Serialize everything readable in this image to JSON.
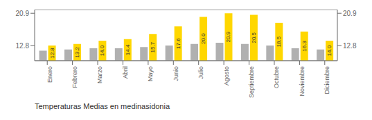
{
  "chart_data": {
    "type": "bar",
    "title": "Temperaturas Medias en medinasidonia",
    "categories": [
      "Enero",
      "Febrero",
      "Marzo",
      "Abril",
      "Mayo",
      "Junio",
      "Julio",
      "Agosto",
      "Septiembre",
      "Octubre",
      "Noviembre",
      "Diciembre"
    ],
    "series": [
      {
        "color": "#B0B0B0",
        "values": [
          11.5,
          11.8,
          12.1,
          12.1,
          12.4,
          12.8,
          13.2,
          13.5,
          13.2,
          12.8,
          12.1,
          11.8
        ]
      },
      {
        "color": "#FFD700",
        "values": [
          12.8,
          13.2,
          14.0,
          14.4,
          15.7,
          17.6,
          20.0,
          20.9,
          20.5,
          18.5,
          16.3,
          14.0
        ],
        "data_labels": true,
        "value_labels": [
          "12.8",
          "13.2",
          "14.0",
          "14.4",
          "15.7",
          "17.6",
          "20.0",
          "20.9",
          "20.5",
          "18.5",
          "16.3",
          "14.0"
        ]
      }
    ],
    "ylim": [
      9.0,
      21.8
    ],
    "yticks": [
      12.8,
      20.9
    ],
    "y2lim": [
      9.0,
      21.8
    ],
    "y2ticks": [
      12.8,
      20.9
    ],
    "grid": true
  }
}
